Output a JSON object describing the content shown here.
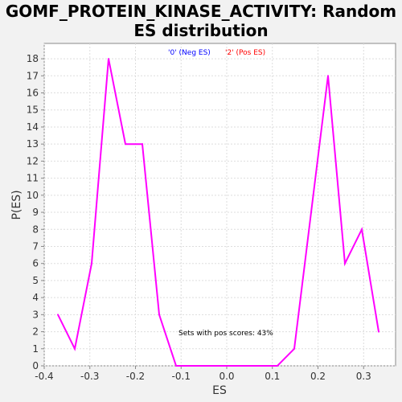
{
  "chart_data": {
    "type": "line",
    "title": "GOMF_PROTEIN_KINASE_ACTIVITY: Random ES distribution",
    "title_lines": [
      "GOMF_PROTEIN_KINASE_ACTIVITY: Random",
      "ES distribution"
    ],
    "xlabel": "ES",
    "ylabel": "P(ES)",
    "xlim": [
      -0.4,
      0.37
    ],
    "ylim": [
      0,
      18.9
    ],
    "xticks": [
      -0.4,
      -0.3,
      -0.2,
      -0.1,
      0.0,
      0.1,
      0.2,
      0.3
    ],
    "xtick_labels": [
      "-0.4",
      "-0.3",
      "-0.2",
      "-0.1",
      "0.0",
      "0.1",
      "0.2",
      "0.3"
    ],
    "yticks": [
      0,
      1,
      2,
      3,
      4,
      5,
      6,
      7,
      8,
      9,
      10,
      11,
      12,
      13,
      14,
      15,
      16,
      17,
      18
    ],
    "grid": true,
    "legend_position": "top-center",
    "legend": [
      {
        "label": "'0' (Neg ES)",
        "color": "#0000ff"
      },
      {
        "label": "'2' (Pos ES)",
        "color": "#ff0000"
      }
    ],
    "annotation": "Sets with pos scores: 43%",
    "series": [
      {
        "color": "#ff00ff",
        "x": [
          -0.37,
          -0.333,
          -0.296,
          -0.259,
          -0.222,
          -0.185,
          -0.148,
          -0.111,
          -0.074,
          -0.037,
          0.0,
          0.037,
          0.074,
          0.111,
          0.148,
          0.185,
          0.222,
          0.259,
          0.296,
          0.333
        ],
        "y": [
          3,
          1,
          6,
          18,
          13,
          13,
          3,
          0,
          0,
          0,
          0,
          0,
          0,
          0,
          1,
          9,
          17,
          6,
          8,
          2
        ]
      }
    ]
  }
}
